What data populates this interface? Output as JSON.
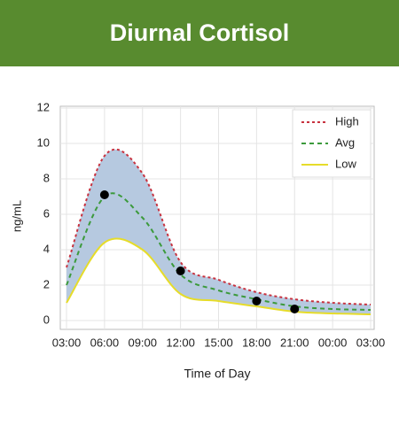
{
  "chart_data": {
    "type": "line",
    "title": "Diurnal Cortisol",
    "x_label": "Time of Day",
    "y_label": "ng/mL",
    "categories": [
      "03:00",
      "06:00",
      "09:00",
      "12:00",
      "15:00",
      "18:00",
      "21:00",
      "00:00",
      "03:00"
    ],
    "series": [
      {
        "name": "High",
        "color": "#c8323f",
        "style": "dotted",
        "values": [
          3.0,
          9.3,
          8.3,
          3.3,
          2.3,
          1.6,
          1.2,
          1.0,
          0.9
        ]
      },
      {
        "name": "Avg",
        "color": "#3c9a3c",
        "style": "dashed",
        "values": [
          2.0,
          7.0,
          5.8,
          2.6,
          1.7,
          1.2,
          0.8,
          0.65,
          0.6
        ]
      },
      {
        "name": "Low",
        "color": "#e6dc2a",
        "style": "solid",
        "values": [
          1.0,
          4.4,
          4.0,
          1.5,
          1.1,
          0.8,
          0.5,
          0.4,
          0.35
        ]
      },
      {
        "color": "#000000",
        "style": "points",
        "values": [
          null,
          7.1,
          null,
          2.8,
          null,
          1.1,
          0.65,
          null,
          null
        ]
      }
    ],
    "band_color": "#b6c9e0",
    "ylim": [
      0,
      12
    ],
    "yticks": [
      0,
      2,
      4,
      6,
      8,
      10,
      12
    ],
    "grid": true,
    "legend": "top-right",
    "header_color": "#588b2f"
  }
}
